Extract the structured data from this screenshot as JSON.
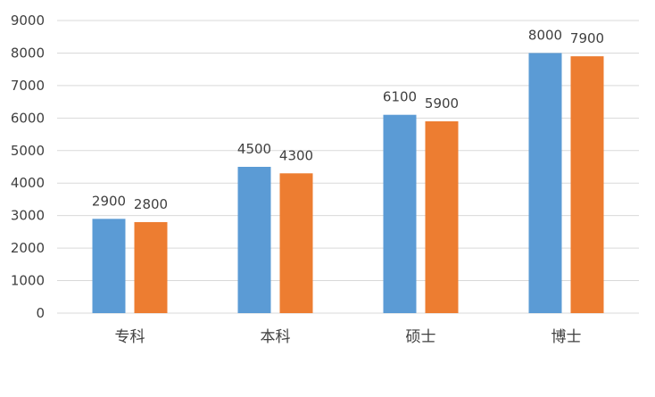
{
  "chart_data": {
    "type": "bar",
    "categories": [
      "专科",
      "本科",
      "硕士",
      "博士"
    ],
    "series": [
      {
        "values": [
          2900,
          4500,
          6100,
          8000
        ],
        "color": "#5b9bd5"
      },
      {
        "values": [
          2800,
          4300,
          5900,
          7900
        ],
        "color": "#ed7d31"
      }
    ],
    "ylim": [
      0,
      9000
    ],
    "yticks": [
      0,
      1000,
      2000,
      3000,
      4000,
      5000,
      6000,
      7000,
      8000,
      9000
    ],
    "grid": true,
    "data_labels": true,
    "legend": "none"
  },
  "colors": {
    "grid": "#d9d9d9",
    "text": "#404040"
  }
}
